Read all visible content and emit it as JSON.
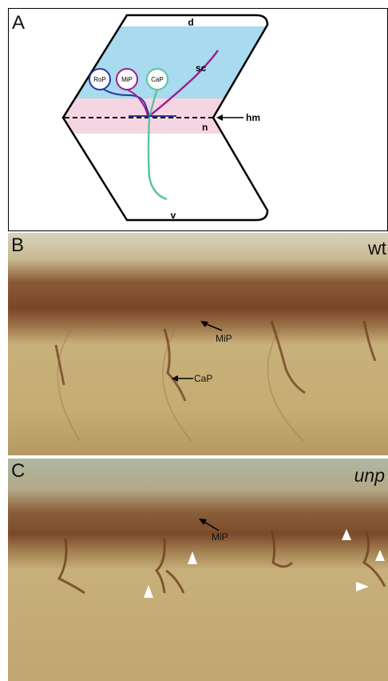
{
  "panel_a": {
    "letter": "A",
    "dorsal": "d",
    "ventral": "v",
    "spinal_cord": "sc",
    "notochord": "n",
    "horizontal_myoseptum": "hm",
    "neurons": [
      "RoP",
      "MiP",
      "CaP"
    ],
    "colors": {
      "spinal_cord_region": "#a8daf0",
      "notochord_region": "#f6d5e2",
      "rop": "#2b3a9e",
      "mip": "#a0208a",
      "cap": "#5cc4a2"
    }
  },
  "panel_b": {
    "letter": "B",
    "genotype": "wt",
    "labels": [
      "MiP",
      "CaP"
    ]
  },
  "panel_c": {
    "letter": "C",
    "genotype": "unp",
    "labels": [
      "MiP"
    ]
  }
}
